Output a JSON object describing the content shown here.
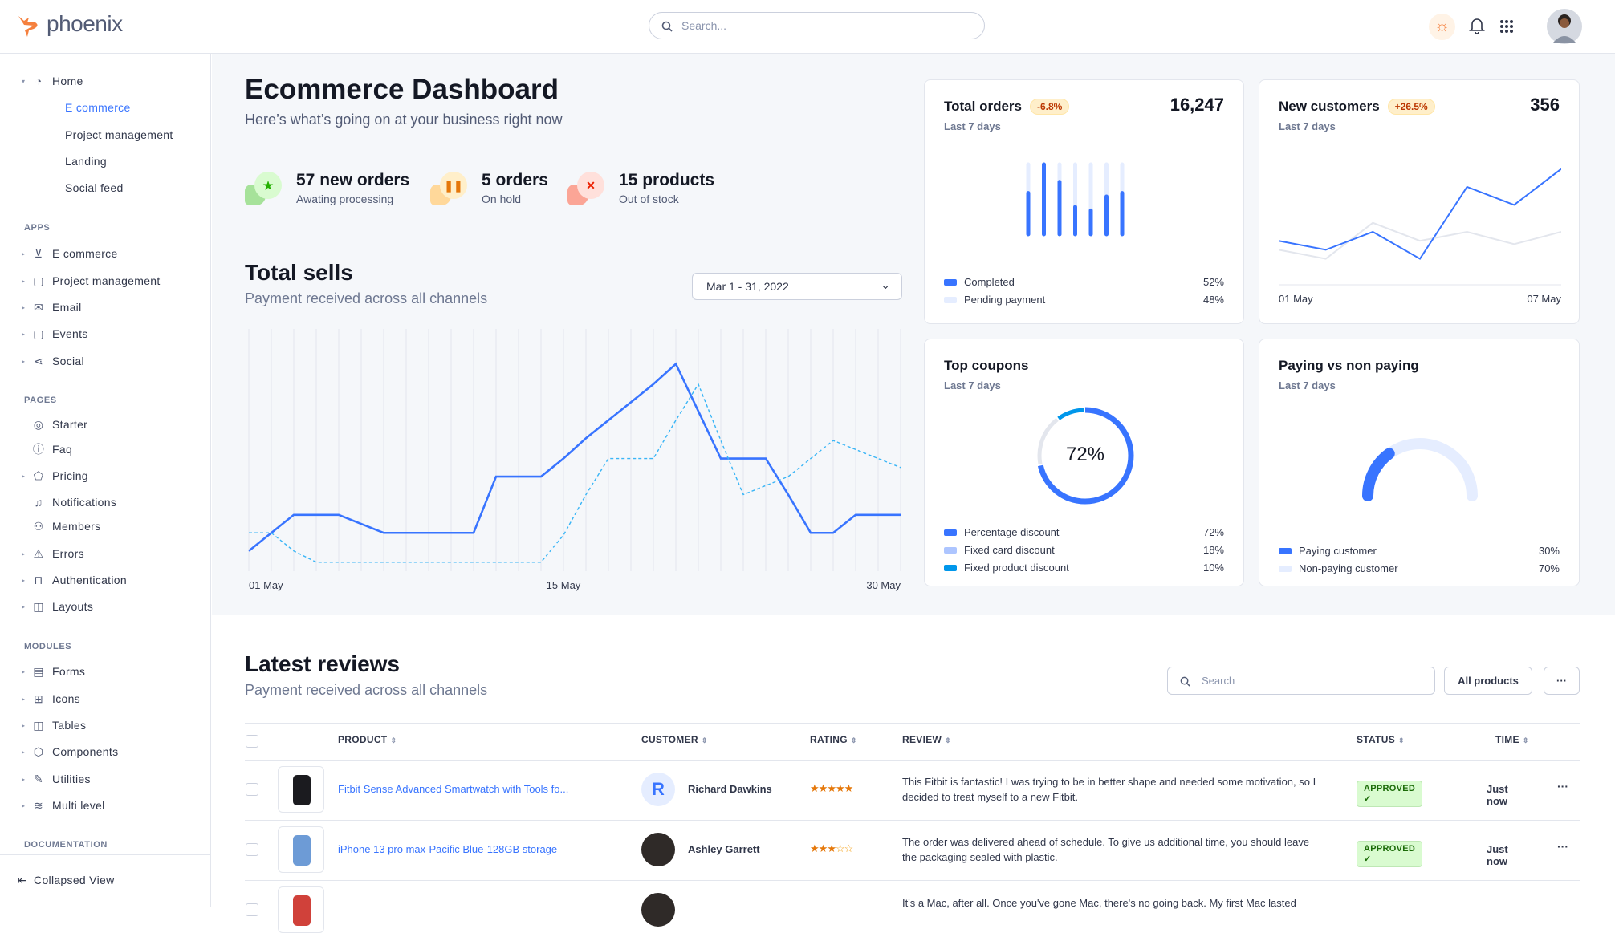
{
  "header": {
    "logo_text": "phoenix",
    "search_placeholder": "Search...",
    "icons": [
      "sun-icon",
      "bell-icon",
      "apps-grid-icon"
    ],
    "accent": "#3874ff"
  },
  "sidebar": {
    "items": [
      {
        "type": "item",
        "label": "Home",
        "icon": "pie-chart-icon",
        "glyph": "◔",
        "caret": "▾"
      },
      {
        "type": "sub",
        "label": "E commerce",
        "active": true
      },
      {
        "type": "sub",
        "label": "Project management"
      },
      {
        "type": "sub",
        "label": "Landing"
      },
      {
        "type": "sub",
        "label": "Social feed"
      },
      {
        "type": "head",
        "label": "APPS"
      },
      {
        "type": "item",
        "label": "E commerce",
        "icon": "cart-icon",
        "glyph": "⊻",
        "caret": "▸"
      },
      {
        "type": "item",
        "label": "Project management",
        "icon": "clipboard-icon",
        "glyph": "▢",
        "caret": "▸"
      },
      {
        "type": "item",
        "label": "Email",
        "icon": "mail-icon",
        "glyph": "✉",
        "caret": "▸"
      },
      {
        "type": "item",
        "label": "Events",
        "icon": "clipboard-icon",
        "glyph": "▢",
        "caret": "▸"
      },
      {
        "type": "item",
        "label": "Social",
        "icon": "share-icon",
        "glyph": "⋖",
        "caret": "▸"
      },
      {
        "type": "head",
        "label": "PAGES"
      },
      {
        "type": "item",
        "label": "Starter",
        "icon": "compass-icon",
        "glyph": "◎"
      },
      {
        "type": "item",
        "label": "Faq",
        "icon": "help-circle-icon",
        "glyph": "ⓘ"
      },
      {
        "type": "item",
        "label": "Pricing",
        "icon": "tag-icon",
        "glyph": "⬠",
        "caret": "▸"
      },
      {
        "type": "item",
        "label": "Notifications",
        "icon": "bell-icon",
        "glyph": "♫"
      },
      {
        "type": "item",
        "label": "Members",
        "icon": "users-icon",
        "glyph": "⚇"
      },
      {
        "type": "item",
        "label": "Errors",
        "icon": "alert-triangle-icon",
        "glyph": "⚠",
        "caret": "▸"
      },
      {
        "type": "item",
        "label": "Authentication",
        "icon": "lock-icon",
        "glyph": "⊓",
        "caret": "▸"
      },
      {
        "type": "item",
        "label": "Layouts",
        "icon": "layout-icon",
        "glyph": "◫",
        "caret": "▸"
      },
      {
        "type": "head",
        "label": "MODULES"
      },
      {
        "type": "item",
        "label": "Forms",
        "icon": "file-text-icon",
        "glyph": "▤",
        "caret": "▸"
      },
      {
        "type": "item",
        "label": "Icons",
        "icon": "grid-icon",
        "glyph": "⊞",
        "caret": "▸"
      },
      {
        "type": "item",
        "label": "Tables",
        "icon": "columns-icon",
        "glyph": "◫",
        "caret": "▸"
      },
      {
        "type": "item",
        "label": "Components",
        "icon": "package-icon",
        "glyph": "⬡",
        "caret": "▸"
      },
      {
        "type": "item",
        "label": "Utilities",
        "icon": "tool-icon",
        "glyph": "✎",
        "caret": "▸"
      },
      {
        "type": "item",
        "label": "Multi level",
        "icon": "layers-icon",
        "glyph": "≋",
        "caret": "▸"
      },
      {
        "type": "head",
        "label": "DOCUMENTATION"
      }
    ],
    "collapse_label": "Collapsed View"
  },
  "page": {
    "title": "Ecommerce Dashboard",
    "subtitle": "Here’s what’s going on at your business right now",
    "stats": [
      {
        "value": "57 new orders",
        "label": "Awating processing",
        "icon": "star-icon",
        "color": "#25b003",
        "bg": "#d9fbd0",
        "shape": "#a6e29a",
        "glyph": "★"
      },
      {
        "value": "5 orders",
        "label": "On hold",
        "icon": "pause-icon",
        "color": "#e5780b",
        "bg": "#ffefca",
        "shape": "#ffd89a",
        "glyph": "❚❚"
      },
      {
        "value": "15 products",
        "label": "Out of stock",
        "icon": "x-icon",
        "color": "#ec1f00",
        "bg": "#ffe0db",
        "shape": "#fba596",
        "glyph": "✕"
      }
    ]
  },
  "total_sells": {
    "title": "Total sells",
    "subtitle": "Payment received across all channels",
    "date_range": "Mar 1 - 31, 2022"
  },
  "chart_data": [
    {
      "type": "line",
      "title": "Total sells",
      "x": [
        1,
        2,
        3,
        4,
        5,
        6,
        7,
        8,
        9,
        10,
        11,
        12,
        13,
        14,
        15,
        16,
        17,
        18,
        19,
        20,
        21,
        22,
        23,
        24,
        25,
        26,
        27,
        28,
        29,
        30
      ],
      "x_tick_labels": [
        "01 May",
        "15 May",
        "30 May"
      ],
      "x_tick_positions": [
        1,
        15,
        30
      ],
      "ylim": [
        0,
        100
      ],
      "grid": "vertical",
      "series": [
        {
          "style": "solid",
          "color": "#3874ff",
          "values": [
            9,
            17,
            25,
            25,
            25,
            21,
            17,
            17,
            17,
            17,
            17,
            42,
            42,
            42,
            50,
            59,
            67,
            75,
            83,
            92,
            71,
            50,
            50,
            50,
            34,
            17,
            17,
            25,
            25,
            25
          ]
        },
        {
          "style": "dashed",
          "color": "#3ab5f6",
          "values": [
            17,
            17,
            9,
            4,
            4,
            4,
            4,
            4,
            4,
            4,
            4,
            4,
            4,
            4,
            16,
            34,
            50,
            50,
            50,
            67,
            83,
            58,
            34,
            38,
            42,
            50,
            58,
            54,
            50,
            46
          ]
        }
      ]
    },
    {
      "type": "bar",
      "title": "Total orders",
      "subtitle": "Last 7 days",
      "badge": "-6.8%",
      "total": "16,247",
      "stacked": true,
      "categories": [
        1,
        2,
        3,
        4,
        5,
        6,
        7
      ],
      "series": [
        {
          "name": "Completed",
          "color": "#3874ff",
          "values": [
            59,
            100,
            75,
            39,
            34,
            54,
            59
          ]
        },
        {
          "name": "Pending payment",
          "color": "#e5edff",
          "values": [
            41,
            0,
            25,
            61,
            66,
            46,
            41
          ]
        }
      ],
      "legend": [
        {
          "name": "Completed",
          "pct": "52%",
          "color": "#3874ff"
        },
        {
          "name": "Pending payment",
          "pct": "48%",
          "color": "#e5edff"
        }
      ]
    },
    {
      "type": "line",
      "title": "New customers",
      "subtitle": "Last 7 days",
      "badge": "+26.5%",
      "total": "356",
      "x_tick_labels": [
        "01 May",
        "07 May"
      ],
      "ylim": [
        0,
        100
      ],
      "series": [
        {
          "color": "#3874ff",
          "values": [
            32,
            24,
            40,
            16,
            80,
            64,
            96
          ]
        },
        {
          "color": "#e3e6ed",
          "values": [
            24,
            16,
            48,
            32,
            40,
            29,
            40
          ]
        }
      ]
    },
    {
      "type": "pie",
      "title": "Top coupons",
      "subtitle": "Last 7 days",
      "center_label": "72%",
      "slices": [
        {
          "name": "Percentage discount",
          "value": 72,
          "pct": "72%",
          "color": "#3874ff"
        },
        {
          "name": "Fixed card discount",
          "value": 18,
          "pct": "18%",
          "color": "#adc5ff",
          "ring_color": "#e3e6ed"
        },
        {
          "name": "Fixed product discount",
          "value": 10,
          "pct": "10%",
          "color": "#0097eb"
        }
      ]
    },
    {
      "type": "pie",
      "title": "Paying vs non paying",
      "subtitle": "Last 7 days",
      "slices": [
        {
          "name": "Paying customer",
          "value": 30,
          "pct": "30%",
          "color": "#3874ff"
        },
        {
          "name": "Non-paying customer",
          "value": 70,
          "pct": "70%",
          "color": "#e5edff"
        }
      ]
    }
  ],
  "reviews": {
    "title": "Latest reviews",
    "subtitle": "Payment received across all channels",
    "search_placeholder": "Search",
    "filter_label": "All products",
    "more_label": "···",
    "columns": [
      "PRODUCT",
      "CUSTOMER",
      "RATING",
      "REVIEW",
      "STATUS",
      "TIME"
    ],
    "rows": [
      {
        "product": "Fitbit Sense Advanced Smartwatch with Tools fo...",
        "customer": "Richard Dawkins",
        "avatar_initial": "R",
        "rating": 5,
        "review": "This Fitbit is fantastic! I was trying to be in better shape and needed some motivation, so I decided to treat myself to a new Fitbit.",
        "status": "APPROVED ✓",
        "time": "Just now"
      },
      {
        "product": "iPhone 13 pro max-Pacific Blue-128GB storage",
        "customer": "Ashley Garrett",
        "rating": 3,
        "review": "The order was delivered ahead of schedule. To give us additional time, you should leave the packaging sealed with plastic.",
        "status": "APPROVED ✓",
        "time": "Just now"
      },
      {
        "review": "It's a Mac, after all. Once you've gone Mac, there's no going back. My first Mac lasted"
      }
    ]
  }
}
